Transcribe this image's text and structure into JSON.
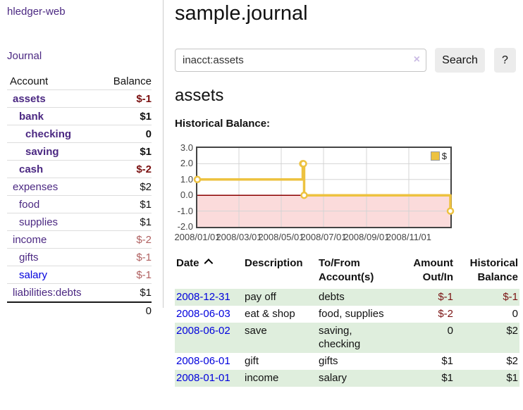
{
  "app": {
    "title": "hledger-web"
  },
  "sidebar": {
    "journal_label": "Journal",
    "table": {
      "account_header": "Account",
      "balance_header": "Balance"
    },
    "accounts": [
      {
        "name": "assets",
        "balance": "$-1",
        "level": 1,
        "bold": true
      },
      {
        "name": "bank",
        "balance": "$1",
        "level": 2,
        "bold": true
      },
      {
        "name": "checking",
        "balance": "0",
        "level": 3,
        "bold": true
      },
      {
        "name": "saving",
        "balance": "$1",
        "level": 3,
        "bold": true
      },
      {
        "name": "cash",
        "balance": "$-2",
        "level": 2,
        "bold": true
      },
      {
        "name": "expenses",
        "balance": "$2",
        "level": 1,
        "bold": false
      },
      {
        "name": "food",
        "balance": "$1",
        "level": 2,
        "bold": false
      },
      {
        "name": "supplies",
        "balance": "$1",
        "level": 2,
        "bold": false
      },
      {
        "name": "income",
        "balance": "$-2",
        "level": 1,
        "bold": false
      },
      {
        "name": "gifts",
        "balance": "$-1",
        "level": 2,
        "bold": false
      },
      {
        "name": "salary",
        "balance": "$-1",
        "level": 2,
        "bold": false,
        "link_style": "blue"
      },
      {
        "name": "liabilities:debts",
        "balance": "$1",
        "level": 1,
        "bold": false
      }
    ],
    "total": "0"
  },
  "header": {
    "title": "sample.journal"
  },
  "search": {
    "value": "inacct:assets",
    "clear_icon": "×",
    "button_label": "Search",
    "help_label": "?"
  },
  "account_page": {
    "title": "assets",
    "chart_label": "Historical Balance:"
  },
  "chart_data": {
    "type": "line",
    "step": true,
    "title": "Historical Balance:",
    "series": [
      {
        "name": "$",
        "color": "#edc240",
        "points": [
          {
            "date": "2008-01-01",
            "value": 1
          },
          {
            "date": "2008-06-01",
            "value": 2
          },
          {
            "date": "2008-06-02",
            "value": 2
          },
          {
            "date": "2008-06-03",
            "value": 0
          },
          {
            "date": "2008-12-31",
            "value": -1
          }
        ]
      }
    ],
    "x_range": [
      "2008-01-01",
      "2008-12-31"
    ],
    "x_ticks": [
      "2008/01/01",
      "2008/03/01",
      "2008/05/01",
      "2008/07/01",
      "2008/09/01",
      "2008/11/01"
    ],
    "y_ticks": [
      "3.0",
      "2.0",
      "1.0",
      "0.0",
      "-1.0",
      "-2.0"
    ],
    "ylim": [
      -2,
      3
    ],
    "grid": true,
    "legend_position": "top-right",
    "negative_fill": "#fbdbdb",
    "zero_line_color": "#8b0000",
    "grid_color": "#d4d4d4"
  },
  "register": {
    "columns": {
      "date": "Date",
      "description": "Description",
      "account_line1": "To/From",
      "account_line2": "Account(s)",
      "amount_line1": "Amount",
      "amount_line2": "Out/In",
      "balance_line1": "Historical",
      "balance_line2": "Balance"
    },
    "rows": [
      {
        "date": "2008-12-31",
        "description": "pay off",
        "accounts": "debts",
        "amount": "$-1",
        "balance": "$-1"
      },
      {
        "date": "2008-06-03",
        "description": "eat & shop",
        "accounts": "food, supplies",
        "amount": "$-2",
        "balance": "0"
      },
      {
        "date": "2008-06-02",
        "description": "save",
        "accounts": "saving, checking",
        "amount": "0",
        "balance": "$2"
      },
      {
        "date": "2008-06-01",
        "description": "gift",
        "accounts": "gifts",
        "amount": "$1",
        "balance": "$2"
      },
      {
        "date": "2008-01-01",
        "description": "income",
        "accounts": "salary",
        "amount": "$1",
        "balance": "$1"
      }
    ]
  },
  "colors": {
    "link_purple": "#4b2882",
    "link_blue": "#0000dd",
    "negative_strong": "#7a1010",
    "negative_muted": "#b06060",
    "stripe_green": "#dfeedd",
    "series_yellow": "#edc240",
    "button_gray": "#ececec"
  }
}
